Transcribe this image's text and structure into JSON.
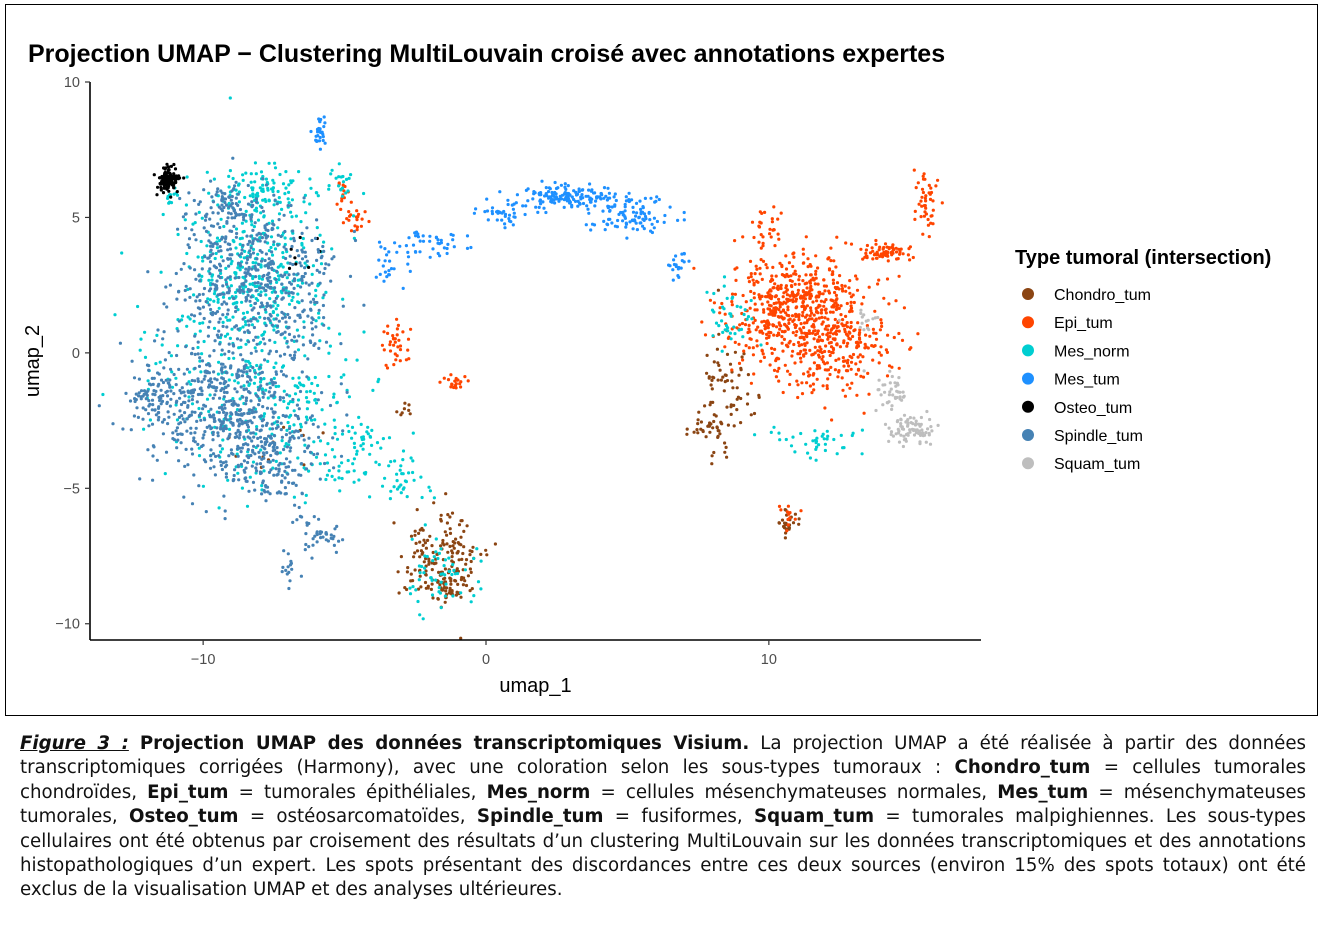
{
  "chart_data": {
    "type": "scatter",
    "title": "Projection UMAP − Clustering MultiLouvain croisé avec annotations expertes",
    "xlabel": "umap_1",
    "ylabel": "umap_2",
    "xlim": [
      -14,
      17.5
    ],
    "ylim": [
      -10.6,
      10
    ],
    "x_ticks": [
      -10,
      0,
      10
    ],
    "x_tick_labels": [
      "−10",
      "0",
      "10"
    ],
    "y_ticks": [
      -10,
      -5,
      0,
      5,
      10
    ],
    "y_tick_labels": [
      "−10",
      "−5",
      "0",
      "5",
      "10"
    ],
    "grid": false,
    "legend": {
      "title": "Type tumoral (intersection)",
      "position": "right"
    },
    "series": [
      {
        "name": "Chondro_tum",
        "color": "#8B4513",
        "clusters": [
          [
            -1.6,
            -7.6,
            1.0,
            1.1,
            160
          ],
          [
            -1.3,
            -8.7,
            0.5,
            0.4,
            40
          ],
          [
            8.5,
            -1.5,
            0.7,
            1.4,
            70
          ],
          [
            7.9,
            -2.8,
            0.5,
            0.3,
            30
          ],
          [
            10.6,
            -6.4,
            0.3,
            0.4,
            25
          ],
          [
            -2.9,
            -2.0,
            0.15,
            0.2,
            8
          ],
          [
            -7.5,
            -3.3,
            1.2,
            0.8,
            12
          ]
        ]
      },
      {
        "name": "Epi_tum",
        "color": "#FF4500",
        "clusters": [
          [
            11.0,
            2.0,
            1.5,
            1.2,
            360
          ],
          [
            12.2,
            0.3,
            1.4,
            1.3,
            300
          ],
          [
            10.2,
            1.0,
            1.3,
            1.1,
            140
          ],
          [
            14.2,
            3.7,
            0.6,
            0.2,
            70
          ],
          [
            15.6,
            5.6,
            0.3,
            0.8,
            45
          ],
          [
            9.9,
            4.5,
            0.4,
            0.6,
            25
          ],
          [
            -4.6,
            4.9,
            0.3,
            0.3,
            20
          ],
          [
            -3.2,
            0.4,
            0.3,
            0.6,
            35
          ],
          [
            -1.2,
            -1.1,
            0.3,
            0.2,
            20
          ],
          [
            -5.1,
            5.9,
            0.2,
            0.4,
            12
          ],
          [
            10.7,
            -6.0,
            0.2,
            0.3,
            12
          ]
        ]
      },
      {
        "name": "Mes_norm",
        "color": "#00CED1",
        "clusters": [
          [
            -8.0,
            3.2,
            1.6,
            2.3,
            340
          ],
          [
            -7.8,
            5.9,
            1.2,
            0.6,
            80
          ],
          [
            -9.0,
            -0.6,
            2.2,
            3.0,
            180
          ],
          [
            -7.2,
            -2.0,
            2.3,
            2.0,
            150
          ],
          [
            -4.7,
            -3.6,
            1.0,
            1.0,
            60
          ],
          [
            -1.6,
            -8.3,
            0.9,
            1.0,
            60
          ],
          [
            -2.9,
            -4.7,
            0.7,
            0.6,
            35
          ],
          [
            11.5,
            -3.2,
            1.1,
            0.4,
            40
          ],
          [
            8.6,
            1.3,
            0.6,
            0.8,
            40
          ],
          [
            -11.1,
            5.7,
            0.2,
            0.2,
            12
          ],
          [
            -5.0,
            6.3,
            0.5,
            0.4,
            20
          ]
        ]
      },
      {
        "name": "Mes_tum",
        "color": "#1E90FF",
        "clusters": [
          [
            3.0,
            5.8,
            1.1,
            0.3,
            150
          ],
          [
            5.2,
            5.1,
            0.9,
            0.4,
            100
          ],
          [
            0.7,
            5.2,
            0.6,
            0.35,
            40
          ],
          [
            -1.9,
            4.0,
            0.9,
            0.4,
            40
          ],
          [
            -3.5,
            3.1,
            0.6,
            0.6,
            25
          ],
          [
            6.8,
            3.5,
            0.3,
            0.5,
            20
          ],
          [
            -5.9,
            8.2,
            0.15,
            0.4,
            30
          ]
        ]
      },
      {
        "name": "Osteo_tum",
        "color": "#000000",
        "clusters": [
          [
            -11.2,
            6.4,
            0.25,
            0.28,
            120
          ],
          [
            -6.5,
            3.3,
            0.6,
            0.8,
            8
          ]
        ]
      },
      {
        "name": "Spindle_tum",
        "color": "#4682B4",
        "clusters": [
          [
            -8.8,
            2.8,
            1.6,
            1.9,
            380
          ],
          [
            -9.4,
            -2.0,
            1.8,
            1.7,
            440
          ],
          [
            -7.6,
            -3.8,
            1.4,
            1.3,
            220
          ],
          [
            -6.7,
            2.0,
            1.2,
            2.0,
            160
          ],
          [
            -9.1,
            5.6,
            0.6,
            0.5,
            60
          ],
          [
            -6.0,
            -6.7,
            0.6,
            0.5,
            40
          ],
          [
            -11.8,
            -1.6,
            0.5,
            0.7,
            70
          ],
          [
            -6.9,
            -7.9,
            0.2,
            0.5,
            15
          ]
        ]
      },
      {
        "name": "Squam_tum",
        "color": "#BEBEBE",
        "clusters": [
          [
            15.0,
            -2.8,
            0.5,
            0.35,
            80
          ],
          [
            14.3,
            -1.5,
            0.4,
            0.5,
            40
          ],
          [
            13.4,
            1.2,
            0.5,
            0.3,
            15
          ]
        ]
      }
    ]
  },
  "caption": {
    "figure_label": "Figure 3 :",
    "bold_title": "Projection UMAP des données transcriptomiques Visium.",
    "text_1": "La projection UMAP a été réalisée à partir des données transcriptomiques corrigées (Harmony), avec une coloration selon les sous-types tumoraux :",
    "term_chondro": "Chondro_tum",
    "def_chondro": "= cellules tumorales chondroïdes,",
    "term_epi": "Epi_tum",
    "def_epi": "= tumorales épithéliales,",
    "term_mes_norm": "Mes_norm",
    "def_mes_norm": "= cellules mésenchymateuses normales,",
    "term_mes_tum": "Mes_tum",
    "def_mes_tum": "= mésenchymateuses tumorales,",
    "term_osteo": "Osteo_tum",
    "def_osteo": "= ostéosarcomatoïdes,",
    "term_spindle": "Spindle_tum",
    "def_spindle": "= fusiformes,",
    "term_squam": "Squam_tum",
    "def_squam": "= tumorales malpighiennes.",
    "text_2": "Les sous-types cellulaires ont été obtenus par croisement des résultats d’un clustering MultiLouvain sur les données transcriptomiques et des annotations histopathologiques d’un expert. Les spots présentant des discordances entre ces deux sources (environ 15% des spots totaux) ont été exclus de la visualisation UMAP et des analyses ultérieures."
  }
}
